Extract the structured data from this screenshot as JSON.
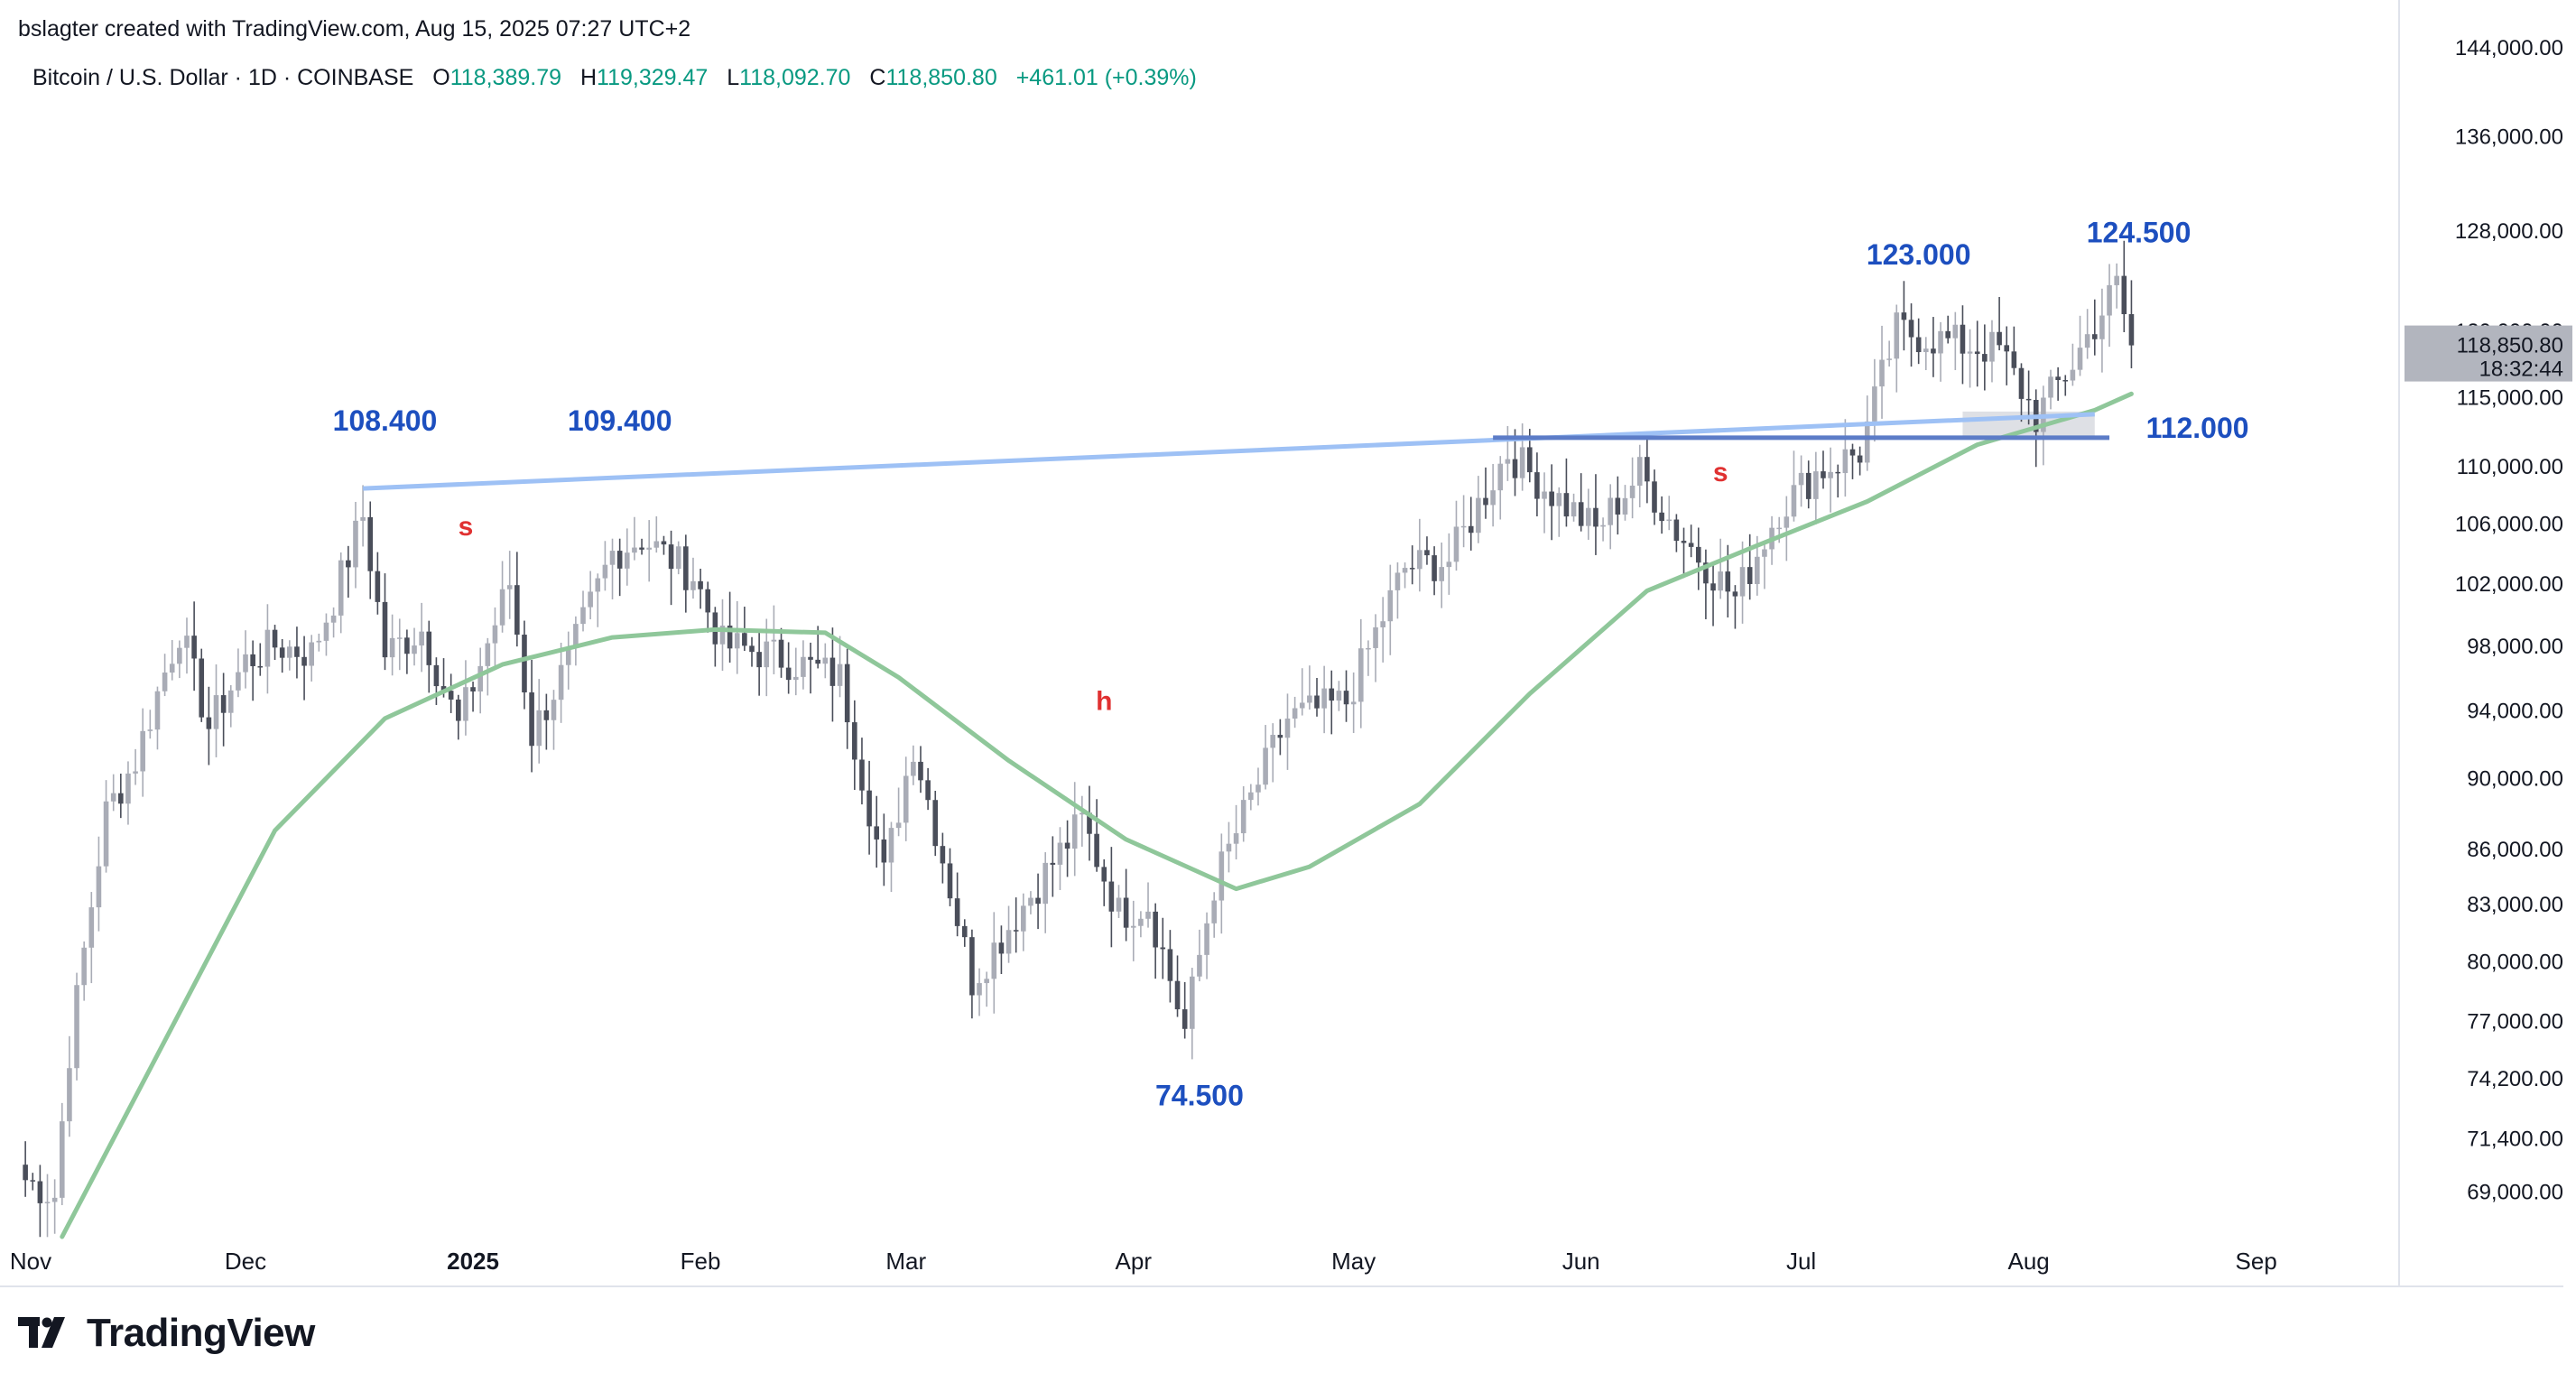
{
  "header": {
    "credit": "bslagter created with TradingView.com, Aug 15, 2025 07:27 UTC+2",
    "symbol": "Bitcoin / U.S. Dollar · 1D · COINBASE",
    "o_label": "O",
    "o_value": "118,389.79",
    "h_label": "H",
    "h_value": "119,329.47",
    "l_label": "L",
    "l_value": "118,092.70",
    "c_label": "C",
    "c_value": "118,850.80",
    "change": "+461.01 (+0.39%)"
  },
  "brand": {
    "name": "TradingView",
    "icon": "tradingview-logo-icon"
  },
  "colors": {
    "candle": "#787b86",
    "candle_dark": "#4a4e5a",
    "ma": "#8fc79a",
    "resistance": "#9ec1f5",
    "support": "#5c7cc7",
    "annotation_blue": "#1d4fbf",
    "annotation_red": "#e03131",
    "price_tag": "#b2b5be"
  },
  "chart_data": {
    "type": "candlestick",
    "price_scale": "log",
    "ylim": [
      67000,
      145000
    ],
    "y_ticks": [
      "144,000.00",
      "136,000.00",
      "128,000.00",
      "120,000.00",
      "115,000.00",
      "110,000.00",
      "106,000.00",
      "102,000.00",
      "98,000.00",
      "94,000.00",
      "90,000.00",
      "86,000.00",
      "83,000.00",
      "80,000.00",
      "77,000.00",
      "74,200.00",
      "71,400.00",
      "69,000.00"
    ],
    "x_labels": [
      "Nov",
      "Dec",
      "2025",
      "Feb",
      "Mar",
      "Apr",
      "May",
      "Jun",
      "Jul",
      "Aug",
      "Sep"
    ],
    "last_price": "118,850.80",
    "countdown": "18:32:44",
    "close_path": [
      [
        "2024-11-01",
        69500
      ],
      [
        "2024-11-05",
        68800
      ],
      [
        "2024-11-07",
        75500
      ],
      [
        "2024-11-12",
        88000
      ],
      [
        "2024-11-16",
        91000
      ],
      [
        "2024-11-22",
        99000
      ],
      [
        "2024-11-26",
        93000
      ],
      [
        "2024-12-01",
        97000
      ],
      [
        "2024-12-05",
        98000
      ],
      [
        "2024-12-10",
        97500
      ],
      [
        "2024-12-13",
        101000
      ],
      [
        "2024-12-17",
        106500
      ],
      [
        "2024-12-20",
        97500
      ],
      [
        "2024-12-25",
        99000
      ],
      [
        "2024-12-30",
        93000
      ],
      [
        "2025-01-06",
        102000
      ],
      [
        "2025-01-09",
        92500
      ],
      [
        "2025-01-14",
        97000
      ],
      [
        "2025-01-20",
        104000
      ],
      [
        "2025-01-24",
        105000
      ],
      [
        "2025-01-31",
        102500
      ],
      [
        "2025-02-04",
        98000
      ],
      [
        "2025-02-10",
        97500
      ],
      [
        "2025-02-20",
        96000
      ],
      [
        "2025-02-26",
        84500
      ],
      [
        "2025-03-02",
        92000
      ],
      [
        "2025-03-10",
        79000
      ],
      [
        "2025-03-18",
        83500
      ],
      [
        "2025-03-25",
        87500
      ],
      [
        "2025-03-30",
        82500
      ],
      [
        "2025-04-03",
        83000
      ],
      [
        "2025-04-08",
        76500
      ],
      [
        "2025-04-12",
        84000
      ],
      [
        "2025-04-22",
        93500
      ],
      [
        "2025-04-30",
        94500
      ],
      [
        "2025-05-08",
        103000
      ],
      [
        "2025-05-14",
        103500
      ],
      [
        "2025-05-22",
        111000
      ],
      [
        "2025-05-27",
        108500
      ],
      [
        "2025-06-03",
        105500
      ],
      [
        "2025-06-09",
        109500
      ],
      [
        "2025-06-14",
        105500
      ],
      [
        "2025-06-22",
        101000
      ],
      [
        "2025-06-28",
        107000
      ],
      [
        "2025-07-03",
        109500
      ],
      [
        "2025-07-09",
        111000
      ],
      [
        "2025-07-14",
        120000
      ],
      [
        "2025-07-22",
        119000
      ],
      [
        "2025-07-28",
        118500
      ],
      [
        "2025-08-02",
        113500
      ],
      [
        "2025-08-07",
        117500
      ],
      [
        "2025-08-13",
        123500
      ],
      [
        "2025-08-15",
        118850
      ]
    ],
    "moving_average": [
      [
        "2024-11-06",
        67000
      ],
      [
        "2024-11-20",
        76000
      ],
      [
        "2024-12-05",
        87000
      ],
      [
        "2024-12-20",
        93500
      ],
      [
        "2025-01-05",
        96800
      ],
      [
        "2025-01-20",
        98500
      ],
      [
        "2025-02-03",
        99000
      ],
      [
        "2025-02-18",
        98800
      ],
      [
        "2025-02-28",
        96000
      ],
      [
        "2025-03-15",
        91000
      ],
      [
        "2025-03-31",
        86500
      ],
      [
        "2025-04-15",
        83800
      ],
      [
        "2025-04-25",
        85000
      ],
      [
        "2025-05-10",
        88500
      ],
      [
        "2025-05-25",
        95000
      ],
      [
        "2025-06-10",
        101500
      ],
      [
        "2025-06-25",
        104500
      ],
      [
        "2025-07-10",
        107500
      ],
      [
        "2025-07-25",
        111500
      ],
      [
        "2025-08-10",
        114000
      ],
      [
        "2025-08-15",
        115200
      ]
    ],
    "trendlines": [
      {
        "name": "resistance",
        "from": [
          "2024-12-17",
          108400
        ],
        "to": [
          "2025-08-10",
          113700
        ]
      },
      {
        "name": "support",
        "from": [
          "2025-05-20",
          112000
        ],
        "to": [
          "2025-08-12",
          112000
        ]
      }
    ],
    "zone": {
      "from": [
        "2025-07-23",
        112000
      ],
      "to": [
        "2025-08-10",
        113900
      ]
    },
    "annotations": [
      {
        "text": "108.400",
        "at": [
          "2024-12-20",
          112500
        ],
        "kind": "level"
      },
      {
        "text": "109.400",
        "at": [
          "2025-01-21",
          112500
        ],
        "kind": "level"
      },
      {
        "text": "123.000",
        "at": [
          "2025-07-17",
          125200
        ],
        "kind": "level"
      },
      {
        "text": "124.500",
        "at": [
          "2025-08-16",
          127000
        ],
        "kind": "level"
      },
      {
        "text": "112.000",
        "at": [
          "2025-08-24",
          112000
        ],
        "kind": "level"
      },
      {
        "text": "74.500",
        "at": [
          "2025-04-10",
          72900
        ],
        "kind": "level"
      },
      {
        "text": "s",
        "at": [
          "2024-12-31",
          105200
        ],
        "kind": "pattern"
      },
      {
        "text": "s",
        "at": [
          "2025-06-20",
          108900
        ],
        "kind": "pattern"
      },
      {
        "text": "h",
        "at": [
          "2025-03-28",
          94000
        ],
        "kind": "pattern"
      }
    ]
  }
}
